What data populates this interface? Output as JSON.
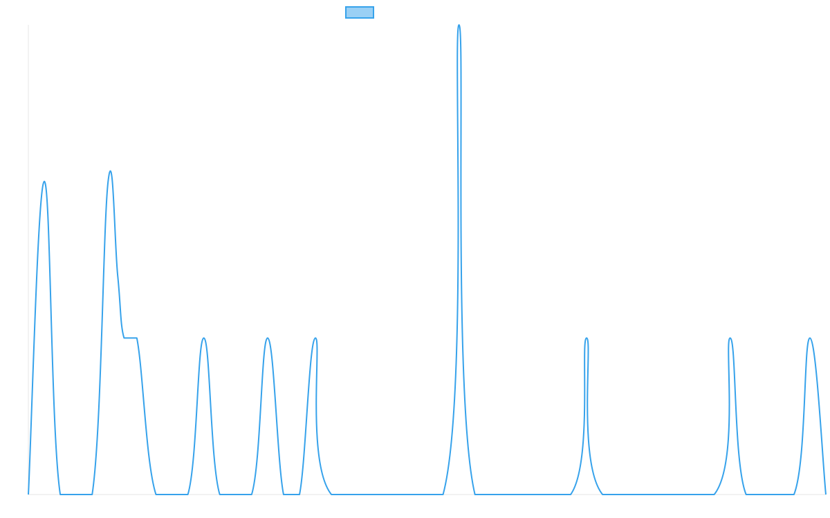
{
  "chart_data": {
    "type": "line",
    "title": "",
    "xlabel": "",
    "ylabel": "",
    "legend": {
      "placement": "top-center",
      "entries": [
        {
          "label": "",
          "color": "#36a2eb",
          "fill": "#9ad0f5"
        }
      ]
    },
    "grid": false,
    "xlim": [
      0,
      1000
    ],
    "ylim": [
      0,
      3
    ],
    "series": [
      {
        "color": "#36a2eb",
        "points": [
          [
            0,
            0
          ],
          [
            20,
            2
          ],
          [
            40,
            0
          ],
          [
            80,
            0
          ],
          [
            100,
            2
          ],
          [
            112,
            1.4
          ],
          [
            120,
            1
          ],
          [
            136,
            1
          ],
          [
            160,
            0
          ],
          [
            200,
            0
          ],
          [
            220,
            1
          ],
          [
            240,
            0
          ],
          [
            280,
            0
          ],
          [
            300,
            1
          ],
          [
            320,
            0
          ],
          [
            340,
            0
          ],
          [
            360,
            1
          ],
          [
            380,
            0
          ],
          [
            520,
            0
          ],
          [
            540,
            3
          ],
          [
            560,
            0
          ],
          [
            680,
            0
          ],
          [
            700,
            1
          ],
          [
            720,
            0
          ],
          [
            860,
            0
          ],
          [
            880,
            1
          ],
          [
            900,
            0
          ],
          [
            960,
            0
          ],
          [
            980,
            1
          ],
          [
            1000,
            0
          ]
        ]
      }
    ]
  }
}
